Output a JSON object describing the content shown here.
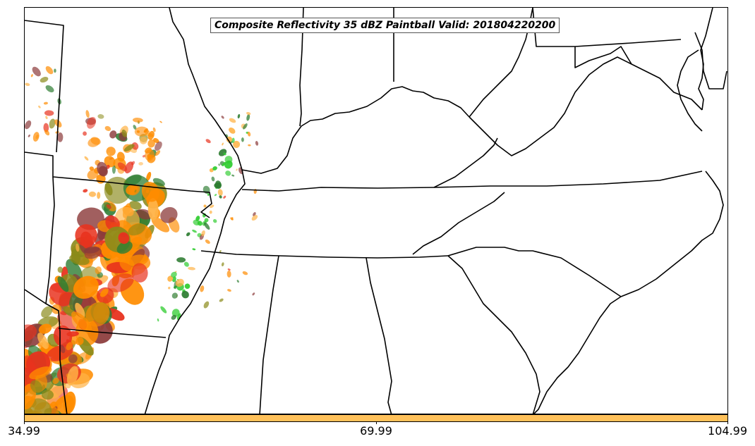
{
  "title": "Composite Reflectivity 35 dBZ Paintball Valid: 201804220200",
  "colorbar": {
    "color": "#ffc15a",
    "ticks": [
      "34.99",
      "69.99",
      "104.99"
    ]
  },
  "colors": {
    "orange": "#ff8c00",
    "red": "#e8321e",
    "green": "#2ecc2e",
    "darkgreen": "#2e7d32",
    "brown": "#8b3a3a",
    "lightorange": "#ffb347",
    "olive": "#8a8a1a"
  }
}
